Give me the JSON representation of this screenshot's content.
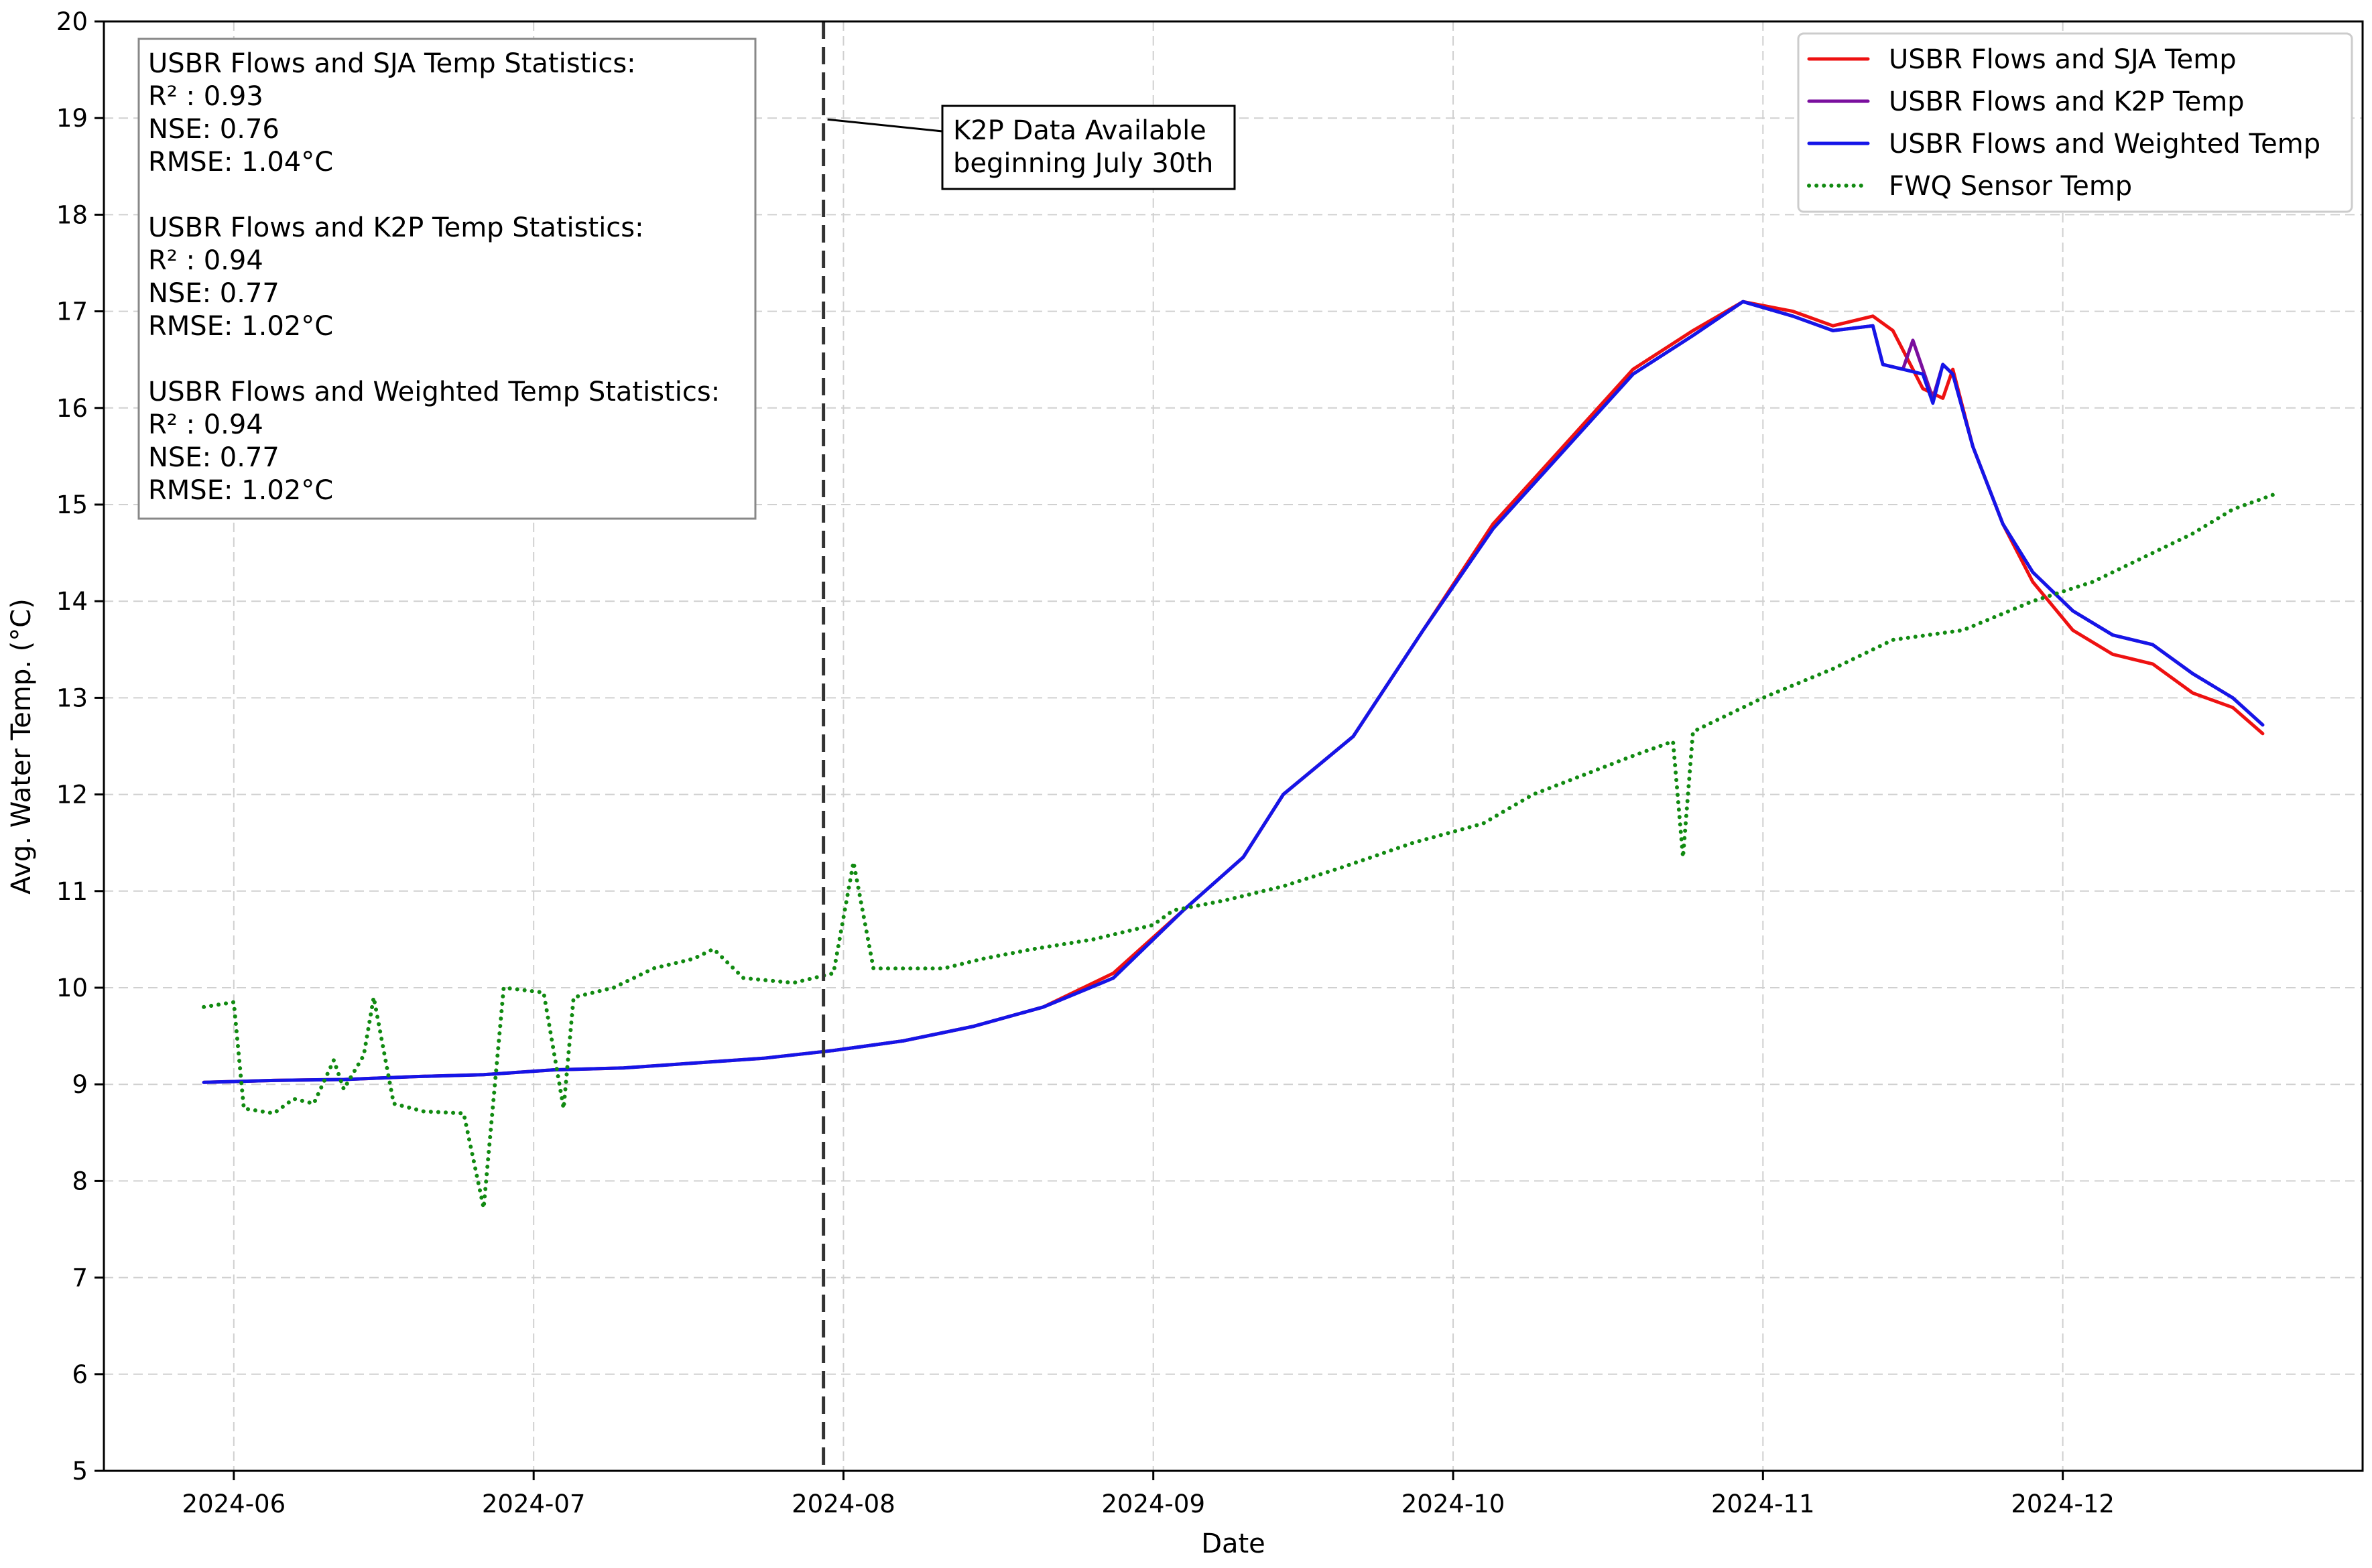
{
  "chart_data": {
    "type": "line",
    "title": "",
    "xlabel": "Date",
    "ylabel": "Avg. Water Temp. (°C)",
    "xlim": [
      "2024-05-19",
      "2024-12-31"
    ],
    "ylim": [
      5,
      20
    ],
    "yticks": [
      5,
      6,
      7,
      8,
      9,
      10,
      11,
      12,
      13,
      14,
      15,
      16,
      17,
      18,
      19,
      20
    ],
    "xticks": [
      {
        "date": "2024-06-01",
        "label": "2024-06"
      },
      {
        "date": "2024-07-01",
        "label": "2024-07"
      },
      {
        "date": "2024-08-01",
        "label": "2024-08"
      },
      {
        "date": "2024-09-01",
        "label": "2024-09"
      },
      {
        "date": "2024-10-01",
        "label": "2024-10"
      },
      {
        "date": "2024-11-01",
        "label": "2024-11"
      },
      {
        "date": "2024-12-01",
        "label": "2024-12"
      }
    ],
    "grid": true,
    "legend_position": "top-right",
    "series": [
      {
        "name": "USBR Flows and SJA Temp",
        "color": "#ee1111",
        "style": "solid",
        "points": [
          [
            "2024-05-29",
            9.02
          ],
          [
            "2024-06-05",
            9.04
          ],
          [
            "2024-06-12",
            9.05
          ],
          [
            "2024-06-19",
            9.08
          ],
          [
            "2024-06-26",
            9.1
          ],
          [
            "2024-07-03",
            9.15
          ],
          [
            "2024-07-10",
            9.17
          ],
          [
            "2024-07-17",
            9.22
          ],
          [
            "2024-07-24",
            9.27
          ],
          [
            "2024-07-31",
            9.35
          ],
          [
            "2024-08-07",
            9.45
          ],
          [
            "2024-08-14",
            9.6
          ],
          [
            "2024-08-21",
            9.8
          ],
          [
            "2024-08-28",
            10.15
          ],
          [
            "2024-09-04",
            10.8
          ],
          [
            "2024-09-10",
            11.35
          ],
          [
            "2024-09-14",
            12.0
          ],
          [
            "2024-09-21",
            12.6
          ],
          [
            "2024-09-28",
            13.7
          ],
          [
            "2024-10-05",
            14.8
          ],
          [
            "2024-10-12",
            15.6
          ],
          [
            "2024-10-19",
            16.4
          ],
          [
            "2024-10-25",
            16.8
          ],
          [
            "2024-10-30",
            17.1
          ],
          [
            "2024-11-04",
            17.0
          ],
          [
            "2024-11-08",
            16.85
          ],
          [
            "2024-11-12",
            16.95
          ],
          [
            "2024-11-14",
            16.8
          ],
          [
            "2024-11-17",
            16.2
          ],
          [
            "2024-11-19",
            16.1
          ],
          [
            "2024-11-20",
            16.4
          ],
          [
            "2024-11-22",
            15.6
          ],
          [
            "2024-11-25",
            14.8
          ],
          [
            "2024-11-28",
            14.2
          ],
          [
            "2024-12-02",
            13.7
          ],
          [
            "2024-12-06",
            13.45
          ],
          [
            "2024-12-10",
            13.35
          ],
          [
            "2024-12-14",
            13.05
          ],
          [
            "2024-12-18",
            12.9
          ],
          [
            "2024-12-21",
            12.63
          ]
        ]
      },
      {
        "name": "USBR Flows and K2P Temp",
        "color": "#7a0f9e",
        "style": "solid",
        "points": [
          [
            "2024-07-31",
            9.35
          ],
          [
            "2024-08-07",
            9.45
          ],
          [
            "2024-08-14",
            9.6
          ],
          [
            "2024-08-21",
            9.8
          ],
          [
            "2024-08-28",
            10.1
          ],
          [
            "2024-09-04",
            10.8
          ],
          [
            "2024-09-10",
            11.35
          ],
          [
            "2024-09-14",
            12.0
          ],
          [
            "2024-09-21",
            12.6
          ],
          [
            "2024-09-28",
            13.7
          ],
          [
            "2024-10-05",
            14.75
          ],
          [
            "2024-10-12",
            15.55
          ],
          [
            "2024-10-19",
            16.35
          ],
          [
            "2024-10-25",
            16.75
          ],
          [
            "2024-10-30",
            17.1
          ],
          [
            "2024-11-04",
            16.95
          ],
          [
            "2024-11-08",
            16.8
          ],
          [
            "2024-11-12",
            16.85
          ],
          [
            "2024-11-13",
            16.45
          ],
          [
            "2024-11-15",
            16.4
          ],
          [
            "2024-11-16",
            16.7
          ],
          [
            "2024-11-18",
            16.1
          ],
          [
            "2024-11-19",
            16.45
          ],
          [
            "2024-11-20",
            16.35
          ],
          [
            "2024-11-22",
            15.6
          ],
          [
            "2024-11-25",
            14.8
          ],
          [
            "2024-11-28",
            14.3
          ],
          [
            "2024-12-02",
            13.9
          ],
          [
            "2024-12-06",
            13.65
          ],
          [
            "2024-12-10",
            13.55
          ],
          [
            "2024-12-14",
            13.25
          ],
          [
            "2024-12-18",
            13.0
          ],
          [
            "2024-12-21",
            12.72
          ]
        ]
      },
      {
        "name": "USBR Flows and Weighted Temp",
        "color": "#1515e8",
        "style": "solid",
        "points": [
          [
            "2024-05-29",
            9.02
          ],
          [
            "2024-06-05",
            9.04
          ],
          [
            "2024-06-12",
            9.05
          ],
          [
            "2024-06-19",
            9.08
          ],
          [
            "2024-06-26",
            9.1
          ],
          [
            "2024-07-03",
            9.15
          ],
          [
            "2024-07-10",
            9.17
          ],
          [
            "2024-07-17",
            9.22
          ],
          [
            "2024-07-24",
            9.27
          ],
          [
            "2024-07-31",
            9.35
          ],
          [
            "2024-08-07",
            9.45
          ],
          [
            "2024-08-14",
            9.6
          ],
          [
            "2024-08-21",
            9.8
          ],
          [
            "2024-08-28",
            10.1
          ],
          [
            "2024-09-04",
            10.8
          ],
          [
            "2024-09-10",
            11.35
          ],
          [
            "2024-09-14",
            12.0
          ],
          [
            "2024-09-21",
            12.6
          ],
          [
            "2024-09-28",
            13.7
          ],
          [
            "2024-10-05",
            14.75
          ],
          [
            "2024-10-12",
            15.55
          ],
          [
            "2024-10-19",
            16.35
          ],
          [
            "2024-10-25",
            16.75
          ],
          [
            "2024-10-30",
            17.1
          ],
          [
            "2024-11-04",
            16.95
          ],
          [
            "2024-11-08",
            16.8
          ],
          [
            "2024-11-12",
            16.85
          ],
          [
            "2024-11-13",
            16.45
          ],
          [
            "2024-11-15",
            16.4
          ],
          [
            "2024-11-17",
            16.35
          ],
          [
            "2024-11-18",
            16.05
          ],
          [
            "2024-11-19",
            16.45
          ],
          [
            "2024-11-20",
            16.35
          ],
          [
            "2024-11-22",
            15.6
          ],
          [
            "2024-11-25",
            14.8
          ],
          [
            "2024-11-28",
            14.3
          ],
          [
            "2024-12-02",
            13.9
          ],
          [
            "2024-12-06",
            13.65
          ],
          [
            "2024-12-10",
            13.55
          ],
          [
            "2024-12-14",
            13.25
          ],
          [
            "2024-12-18",
            13.0
          ],
          [
            "2024-12-21",
            12.72
          ]
        ]
      },
      {
        "name": "FWQ Sensor Temp",
        "color": "#118a11",
        "style": "dotted",
        "points": [
          [
            "2024-05-29",
            9.8
          ],
          [
            "2024-06-01",
            9.85
          ],
          [
            "2024-06-02",
            8.75
          ],
          [
            "2024-06-05",
            8.7
          ],
          [
            "2024-06-07",
            8.85
          ],
          [
            "2024-06-09",
            8.8
          ],
          [
            "2024-06-11",
            9.25
          ],
          [
            "2024-06-12",
            8.95
          ],
          [
            "2024-06-14",
            9.3
          ],
          [
            "2024-06-15",
            9.9
          ],
          [
            "2024-06-17",
            8.8
          ],
          [
            "2024-06-20",
            8.72
          ],
          [
            "2024-06-24",
            8.7
          ],
          [
            "2024-06-26",
            7.72
          ],
          [
            "2024-06-28",
            10.0
          ],
          [
            "2024-07-02",
            9.95
          ],
          [
            "2024-07-04",
            8.75
          ],
          [
            "2024-07-05",
            9.9
          ],
          [
            "2024-07-09",
            10.0
          ],
          [
            "2024-07-13",
            10.2
          ],
          [
            "2024-07-17",
            10.3
          ],
          [
            "2024-07-19",
            10.4
          ],
          [
            "2024-07-22",
            10.1
          ],
          [
            "2024-07-27",
            10.05
          ],
          [
            "2024-07-31",
            10.15
          ],
          [
            "2024-08-02",
            11.3
          ],
          [
            "2024-08-04",
            10.2
          ],
          [
            "2024-08-11",
            10.2
          ],
          [
            "2024-08-15",
            10.3
          ],
          [
            "2024-08-20",
            10.4
          ],
          [
            "2024-08-26",
            10.5
          ],
          [
            "2024-09-01",
            10.65
          ],
          [
            "2024-09-03",
            10.8
          ],
          [
            "2024-09-08",
            10.9
          ],
          [
            "2024-09-14",
            11.05
          ],
          [
            "2024-09-20",
            11.25
          ],
          [
            "2024-09-27",
            11.5
          ],
          [
            "2024-10-04",
            11.7
          ],
          [
            "2024-10-09",
            12.0
          ],
          [
            "2024-10-14",
            12.2
          ],
          [
            "2024-10-19",
            12.4
          ],
          [
            "2024-10-23",
            12.55
          ],
          [
            "2024-10-24",
            11.35
          ],
          [
            "2024-10-25",
            12.65
          ],
          [
            "2024-11-01",
            13.0
          ],
          [
            "2024-11-08",
            13.3
          ],
          [
            "2024-11-14",
            13.6
          ],
          [
            "2024-11-21",
            13.7
          ],
          [
            "2024-11-28",
            14.0
          ],
          [
            "2024-12-04",
            14.2
          ],
          [
            "2024-12-10",
            14.5
          ],
          [
            "2024-12-14",
            14.7
          ],
          [
            "2024-12-18",
            14.95
          ],
          [
            "2024-12-22",
            15.1
          ]
        ]
      }
    ],
    "vline": {
      "date": "2024-07-30",
      "color": "#333333",
      "style": "dashed"
    },
    "annotation": {
      "lines": [
        "K2P Data Available",
        "beginning July 30th"
      ],
      "arrow_to": {
        "date": "2024-07-30",
        "y": 19.0
      }
    },
    "stats_box": {
      "lines": [
        "USBR Flows and SJA Temp Statistics:",
        "R² : 0.93",
        "NSE: 0.76",
        "RMSE: 1.04°C",
        "",
        "USBR Flows and K2P Temp Statistics:",
        "R² : 0.94",
        "NSE: 0.77",
        "RMSE: 1.02°C",
        "",
        "USBR Flows and Weighted Temp Statistics:",
        "R² : 0.94",
        "NSE: 0.77",
        "RMSE: 1.02°C"
      ]
    }
  }
}
